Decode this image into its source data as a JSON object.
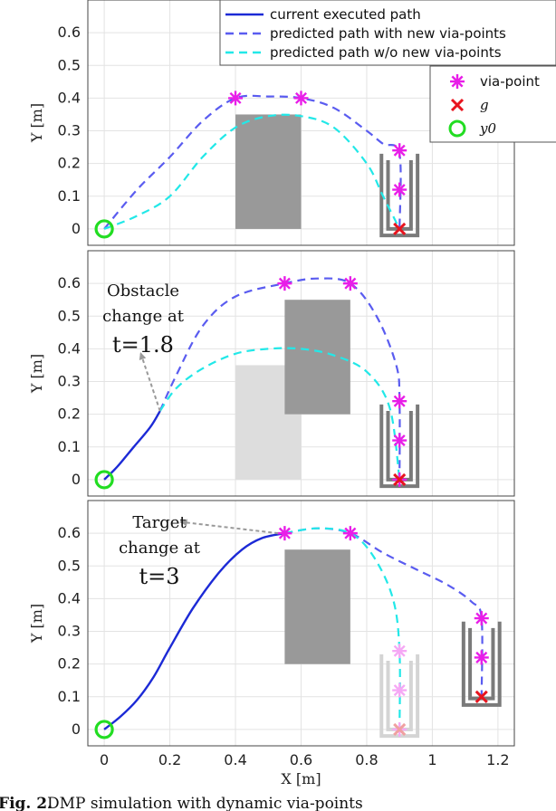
{
  "chart_data": [
    {
      "type": "line",
      "panel": "top",
      "ylabel": "Y [m]",
      "xlim": [
        -0.05,
        1.25
      ],
      "ylim": [
        -0.05,
        0.7
      ],
      "yticks": [
        0,
        0.1,
        0.2,
        0.3,
        0.4,
        0.5,
        0.6
      ],
      "ytick_labels": [
        "0",
        "0.1",
        "0.2",
        "0.3",
        "0.4",
        "0.5",
        "0.6"
      ],
      "xgrid": [
        0,
        0.2,
        0.4,
        0.6,
        0.8,
        1,
        1.2
      ],
      "grid": true,
      "series": [
        {
          "name": "predicted path with new via-points",
          "color": "#5a5cf0",
          "style": "dashed",
          "x": [
            0,
            0.1,
            0.2,
            0.3,
            0.4,
            0.5,
            0.6,
            0.7,
            0.8,
            0.85,
            0.9,
            0.9
          ],
          "y": [
            0,
            0.12,
            0.22,
            0.33,
            0.4,
            0.405,
            0.4,
            0.37,
            0.3,
            0.26,
            0.23,
            0
          ]
        },
        {
          "name": "predicted path w/o new via-points",
          "color": "#22e8e8",
          "style": "dashed",
          "x": [
            0,
            0.1,
            0.2,
            0.3,
            0.4,
            0.5,
            0.6,
            0.7,
            0.8,
            0.85,
            0.9
          ],
          "y": [
            0,
            0.04,
            0.1,
            0.22,
            0.31,
            0.345,
            0.345,
            0.31,
            0.2,
            0.1,
            0
          ]
        }
      ],
      "via_points": {
        "x": [
          0.4,
          0.6,
          0.9,
          0.9
        ],
        "y": [
          0.4,
          0.4,
          0.24,
          0.12
        ],
        "color": "#e81ee8"
      },
      "goal": {
        "x": 0.9,
        "y": 0,
        "color": "#e8141e"
      },
      "start": {
        "x": 0,
        "y": 0,
        "color": "#22dd22"
      },
      "obstacles": [
        {
          "x0": 0.4,
          "x1": 0.6,
          "y0": 0,
          "y1": 0.35,
          "color": "#999999"
        }
      ],
      "bins": [
        {
          "xl": 0.845,
          "xr": 0.955,
          "y0": -0.02,
          "y1": 0.23,
          "color": "#7a7a7a"
        }
      ]
    },
    {
      "type": "line",
      "panel": "middle",
      "ylabel": "Y [m]",
      "xlim": [
        -0.05,
        1.25
      ],
      "ylim": [
        -0.05,
        0.7
      ],
      "yticks": [
        0,
        0.1,
        0.2,
        0.3,
        0.4,
        0.5,
        0.6
      ],
      "ytick_labels": [
        "0",
        "0.1",
        "0.2",
        "0.3",
        "0.4",
        "0.5",
        "0.6"
      ],
      "xgrid": [
        0,
        0.2,
        0.4,
        0.6,
        0.8,
        1,
        1.2
      ],
      "grid": true,
      "series": [
        {
          "name": "current executed path",
          "color": "#1c2ad6",
          "style": "solid",
          "x": [
            0,
            0.04,
            0.09,
            0.14,
            0.17
          ],
          "y": [
            0,
            0.04,
            0.1,
            0.16,
            0.21
          ]
        },
        {
          "name": "predicted path with new via-points",
          "color": "#5a5cf0",
          "style": "dashed",
          "x": [
            0.17,
            0.22,
            0.3,
            0.4,
            0.55,
            0.65,
            0.75,
            0.83,
            0.89,
            0.9,
            0.9
          ],
          "y": [
            0.21,
            0.32,
            0.47,
            0.56,
            0.6,
            0.615,
            0.6,
            0.5,
            0.35,
            0.24,
            0
          ]
        },
        {
          "name": "predicted path w/o new via-points",
          "color": "#22e8e8",
          "style": "dashed",
          "x": [
            0.17,
            0.22,
            0.3,
            0.4,
            0.5,
            0.6,
            0.7,
            0.8,
            0.87,
            0.9
          ],
          "y": [
            0.21,
            0.28,
            0.34,
            0.385,
            0.4,
            0.4,
            0.38,
            0.33,
            0.22,
            0
          ]
        }
      ],
      "via_points": {
        "x": [
          0.55,
          0.75,
          0.9,
          0.9,
          0.9
        ],
        "y": [
          0.6,
          0.6,
          0.24,
          0.12,
          0
        ],
        "color": "#e81ee8"
      },
      "goal": {
        "x": 0.9,
        "y": 0,
        "color": "#e8141e"
      },
      "start": {
        "x": 0,
        "y": 0,
        "color": "#22dd22"
      },
      "obstacles": [
        {
          "x0": 0.4,
          "x1": 0.6,
          "y0": 0,
          "y1": 0.35,
          "color": "#dddddd"
        },
        {
          "x0": 0.55,
          "x1": 0.75,
          "y0": 0.2,
          "y1": 0.55,
          "color": "#999999"
        }
      ],
      "bins": [
        {
          "xl": 0.845,
          "xr": 0.955,
          "y0": -0.02,
          "y1": 0.23,
          "color": "#7a7a7a"
        }
      ],
      "annotation": {
        "lines": [
          "Obstacle",
          "change at",
          "t=1.8"
        ],
        "arrow_from": [
          0.17,
          0.21
        ],
        "arrow_to": [
          0.11,
          0.39
        ]
      }
    },
    {
      "type": "line",
      "panel": "bottom",
      "xlabel": "X [m]",
      "ylabel": "Y [m]",
      "xlim": [
        -0.05,
        1.25
      ],
      "ylim": [
        -0.05,
        0.7
      ],
      "xticks": [
        0,
        0.2,
        0.4,
        0.6,
        0.8,
        1,
        1.2
      ],
      "xtick_labels": [
        "0",
        "0.2",
        "0.4",
        "0.6",
        "0.8",
        "1",
        "1.2"
      ],
      "yticks": [
        0,
        0.1,
        0.2,
        0.3,
        0.4,
        0.5,
        0.6
      ],
      "ytick_labels": [
        "0",
        "0.1",
        "0.2",
        "0.3",
        "0.4",
        "0.5",
        "0.6"
      ],
      "grid": true,
      "series": [
        {
          "name": "current executed path",
          "color": "#1c2ad6",
          "style": "solid",
          "x": [
            0,
            0.05,
            0.1,
            0.15,
            0.2,
            0.27,
            0.35,
            0.42,
            0.48,
            0.55
          ],
          "y": [
            0,
            0.04,
            0.09,
            0.16,
            0.25,
            0.37,
            0.48,
            0.55,
            0.585,
            0.6
          ]
        },
        {
          "name": "predicted path with new via-points",
          "color": "#5a5cf0",
          "style": "dashed",
          "x": [
            0.55,
            0.65,
            0.75,
            0.85,
            0.95,
            1.05,
            1.12,
            1.15,
            1.15
          ],
          "y": [
            0.6,
            0.615,
            0.6,
            0.54,
            0.49,
            0.44,
            0.39,
            0.34,
            0.1
          ]
        },
        {
          "name": "predicted path w/o new via-points",
          "color": "#22e8e8",
          "style": "dashed",
          "x": [
            0.55,
            0.65,
            0.75,
            0.82,
            0.88,
            0.9,
            0.9
          ],
          "y": [
            0.6,
            0.615,
            0.6,
            0.53,
            0.4,
            0.24,
            0
          ]
        }
      ],
      "via_points": {
        "x": [
          0.55,
          0.75,
          1.15,
          1.15
        ],
        "y": [
          0.6,
          0.6,
          0.34,
          0.22
        ],
        "color": "#e81ee8"
      },
      "faded_via_points": {
        "x": [
          0.9,
          0.9,
          0.9
        ],
        "y": [
          0.24,
          0.12,
          0
        ],
        "color": "#f5a8f5"
      },
      "goal": {
        "x": 1.15,
        "y": 0.1,
        "color": "#e8141e"
      },
      "faded_goal": {
        "x": 0.9,
        "y": 0,
        "color": "#f0a0a0"
      },
      "start": {
        "x": 0,
        "y": 0,
        "color": "#22dd22"
      },
      "obstacles": [
        {
          "x0": 0.55,
          "x1": 0.75,
          "y0": 0.2,
          "y1": 0.55,
          "color": "#999999"
        }
      ],
      "bins": [
        {
          "xl": 0.845,
          "xr": 0.955,
          "y0": -0.02,
          "y1": 0.23,
          "color": "#d4d4d4"
        },
        {
          "xl": 1.095,
          "xr": 1.205,
          "y0": 0.075,
          "y1": 0.33,
          "color": "#7a7a7a"
        }
      ],
      "annotation": {
        "lines": [
          "Target",
          "change at",
          "t=3"
        ],
        "arrow_from": [
          0.53,
          0.6
        ],
        "arrow_to": [
          0.23,
          0.635
        ]
      }
    }
  ],
  "legend1": {
    "items": [
      {
        "label": "current executed path",
        "style": "solid",
        "color": "#1c2ad6"
      },
      {
        "label": "predicted path with new via-points",
        "style": "dashed",
        "color": "#5a5cf0"
      },
      {
        "label": "predicted path w/o new via-points",
        "style": "dashed",
        "color": "#22e8e8"
      }
    ]
  },
  "legend2": {
    "items": [
      {
        "label": "via-point",
        "marker": "star",
        "color": "#e81ee8"
      },
      {
        "label": "g",
        "marker": "x",
        "color": "#e8141e"
      },
      {
        "label": "y0",
        "marker": "circle",
        "color": "#22dd22"
      }
    ]
  },
  "caption": {
    "prefix": "Fig. 2.",
    "text": "DMP simulation with dynamic via-points"
  }
}
